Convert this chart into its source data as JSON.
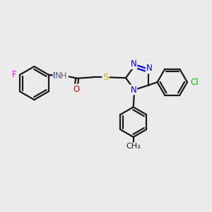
{
  "bg_color": "#ebebeb",
  "bond_color": "#1a1a1a",
  "bond_width": 1.6,
  "atom_colors": {
    "F": "#ee00ee",
    "N": "#0000ee",
    "O": "#dd0000",
    "S": "#bbbb00",
    "Cl": "#00bb00",
    "C": "#1a1a1a",
    "H": "#606060"
  },
  "font_size": 8.5
}
